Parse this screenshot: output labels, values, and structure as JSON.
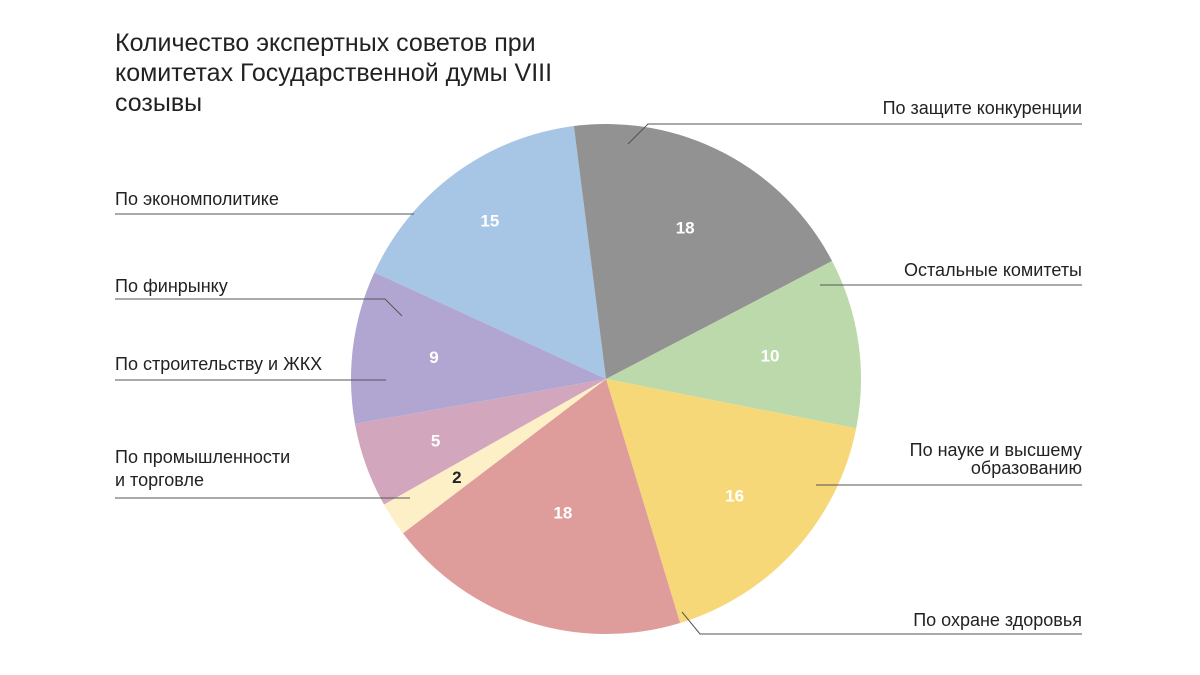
{
  "chart_data": {
    "type": "pie",
    "title": "Количество экспертных советов при комитетах Государственной думы VIII созывы",
    "slices": [
      {
        "label": "По защите конкуренции",
        "value": 15,
        "color": "#a7c5e4",
        "value_color": "#ffffff"
      },
      {
        "label": "Остальные комитеты",
        "value": 18,
        "color": "#929292",
        "value_color": "#ffffff"
      },
      {
        "label": "По науке и высшему образованию",
        "value": 10,
        "color": "#bcd9ab",
        "value_color": "#ffffff"
      },
      {
        "label": "По охране здоровья",
        "value": 16,
        "color": "#f7d878",
        "value_color": "#ffffff"
      },
      {
        "label": "По промышленности и торговле",
        "value": 18,
        "color": "#de9d9a",
        "value_color": "#ffffff"
      },
      {
        "label": "По строительству и ЖКХ",
        "value": 2,
        "color": "#fdf0c6",
        "value_color": "#222222"
      },
      {
        "label": "По финрынку",
        "value": 5,
        "color": "#d2a6bd",
        "value_color": "#ffffff"
      },
      {
        "label": "По экономполитике",
        "value": 9,
        "color": "#b1a6d2",
        "value_color": "#ffffff"
      }
    ]
  }
}
